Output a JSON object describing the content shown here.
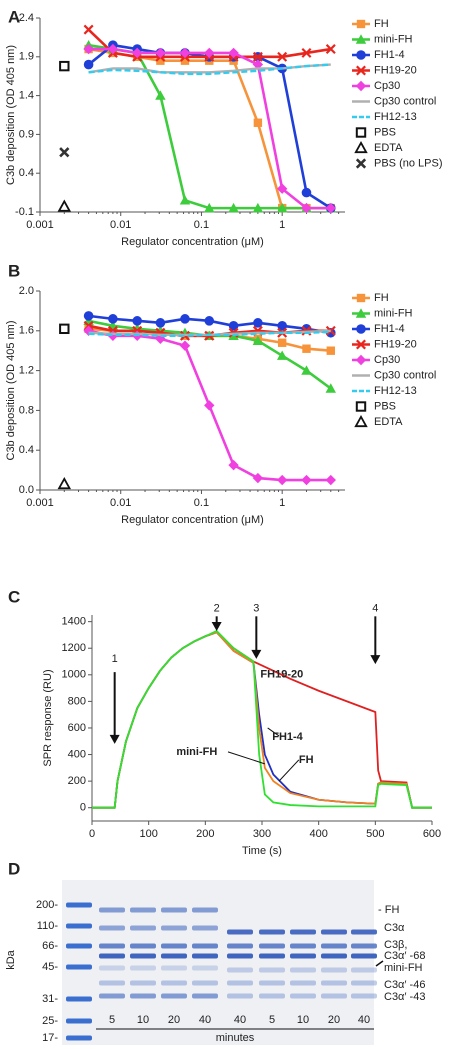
{
  "chart_data": [
    {
      "type": "line",
      "label": "A",
      "xscale": "log",
      "y_label": "C3b deposition (OD 405 nm)",
      "x_label": "Regulator concentration (μM)",
      "xlim": [
        0.001,
        6
      ],
      "xticks": [
        0.001,
        0.01,
        0.1,
        1
      ],
      "ylim": [
        -0.1,
        2.4
      ],
      "yticks": [
        -0.1,
        0.4,
        0.9,
        1.4,
        1.9,
        2.4
      ],
      "legend": "right",
      "x": [
        0.004,
        0.008,
        0.016,
        0.031,
        0.0625,
        0.125,
        0.25,
        0.5,
        1,
        2,
        4
      ],
      "series": [
        {
          "name": "FH",
          "color": "#f7933a",
          "marker": "square",
          "values": [
            2.0,
            1.95,
            1.9,
            1.85,
            1.85,
            1.85,
            1.85,
            1.05,
            -0.05,
            -0.05,
            -0.05
          ]
        },
        {
          "name": "mini-FH",
          "color": "#3ccc3c",
          "marker": "triangle",
          "values": [
            2.05,
            2.0,
            1.95,
            1.4,
            0.05,
            -0.05,
            -0.05,
            -0.05,
            -0.05,
            -0.05,
            -0.05
          ]
        },
        {
          "name": "FH1-4",
          "color": "#1f3fd8",
          "marker": "circle",
          "values": [
            1.8,
            2.05,
            2.0,
            1.95,
            1.95,
            1.9,
            1.9,
            1.9,
            1.75,
            0.15,
            -0.05
          ]
        },
        {
          "name": "FH19-20",
          "color": "#e8261e",
          "marker": "x",
          "values": [
            2.25,
            1.95,
            1.9,
            1.9,
            1.9,
            1.9,
            1.9,
            1.9,
            1.9,
            1.95,
            2.0
          ]
        },
        {
          "name": "Cp30",
          "color": "#f040e0",
          "marker": "diamond",
          "values": [
            2.0,
            2.0,
            1.95,
            1.95,
            1.95,
            1.95,
            1.95,
            1.8,
            0.2,
            -0.05,
            -0.05
          ]
        },
        {
          "name": "Cp30 control",
          "color": "#b0b0b0",
          "marker": "none",
          "style": "solid",
          "values": [
            1.7,
            1.75,
            1.75,
            1.7,
            1.7,
            1.7,
            1.72,
            1.75,
            1.75,
            1.78,
            1.8
          ]
        },
        {
          "name": "FH12-13",
          "color": "#33ccee",
          "marker": "none",
          "style": "dashed",
          "values": [
            1.7,
            1.73,
            1.72,
            1.7,
            1.68,
            1.68,
            1.7,
            1.72,
            1.75,
            1.78,
            1.8
          ]
        }
      ],
      "points": [
        {
          "name": "PBS",
          "marker": "open-square",
          "x": 0.002,
          "value": 1.78
        },
        {
          "name": "EDTA",
          "marker": "open-triangle",
          "x": 0.002,
          "value": -0.03
        },
        {
          "name": "PBS (no LPS)",
          "marker": "cross",
          "x": 0.002,
          "value": 0.67
        }
      ]
    },
    {
      "type": "line",
      "label": "B",
      "xscale": "log",
      "y_label": "C3b deposition (OD 405 nm)",
      "x_label": "Regulator concentration (μM)",
      "xlim": [
        0.001,
        6
      ],
      "xticks": [
        0.001,
        0.01,
        0.1,
        1
      ],
      "ylim": [
        0,
        2.0
      ],
      "yticks": [
        {
          "value": 0,
          "label": "0.0"
        },
        0.4,
        0.8,
        1.2,
        1.6,
        {
          "value": 2,
          "label": "2.0"
        }
      ],
      "legend": "right",
      "x": [
        0.004,
        0.008,
        0.016,
        0.031,
        0.0625,
        0.125,
        0.25,
        0.5,
        1,
        2,
        4
      ],
      "series": [
        {
          "name": "FH",
          "color": "#f7933a",
          "marker": "square",
          "values": [
            1.62,
            1.6,
            1.6,
            1.58,
            1.55,
            1.55,
            1.55,
            1.52,
            1.48,
            1.42,
            1.4
          ]
        },
        {
          "name": "mini-FH",
          "color": "#3ccc3c",
          "marker": "triangle",
          "values": [
            1.7,
            1.65,
            1.62,
            1.6,
            1.58,
            1.55,
            1.55,
            1.5,
            1.35,
            1.2,
            1.02
          ]
        },
        {
          "name": "FH1-4",
          "color": "#1f3fd8",
          "marker": "circle",
          "values": [
            1.75,
            1.72,
            1.7,
            1.68,
            1.72,
            1.7,
            1.65,
            1.68,
            1.65,
            1.62,
            1.58
          ]
        },
        {
          "name": "FH19-20",
          "color": "#e8261e",
          "marker": "x",
          "values": [
            1.65,
            1.6,
            1.6,
            1.58,
            1.55,
            1.55,
            1.58,
            1.6,
            1.58,
            1.6,
            1.6
          ]
        },
        {
          "name": "Cp30",
          "color": "#f040e0",
          "marker": "diamond",
          "values": [
            1.6,
            1.55,
            1.55,
            1.52,
            1.45,
            0.85,
            0.25,
            0.12,
            0.1,
            0.1,
            0.1
          ]
        },
        {
          "name": "Cp30 control",
          "color": "#b0b0b0",
          "marker": "none",
          "style": "solid",
          "values": [
            1.58,
            1.57,
            1.57,
            1.56,
            1.56,
            1.56,
            1.57,
            1.58,
            1.58,
            1.59,
            1.6
          ]
        },
        {
          "name": "FH12-13",
          "color": "#33ccee",
          "marker": "none",
          "style": "dashed",
          "values": [
            1.57,
            1.56,
            1.56,
            1.55,
            1.55,
            1.56,
            1.56,
            1.57,
            1.58,
            1.58,
            1.59
          ]
        }
      ],
      "points": [
        {
          "name": "PBS",
          "marker": "open-square",
          "x": 0.002,
          "value": 1.62
        },
        {
          "name": "EDTA",
          "marker": "open-triangle",
          "x": 0.002,
          "value": 0.06
        }
      ]
    },
    {
      "type": "line",
      "label": "C",
      "xscale": "linear",
      "y_label": "SPR response (RU)",
      "x_label": "Time (s)",
      "xlim": [
        0,
        600
      ],
      "xticks": [
        0,
        100,
        200,
        300,
        400,
        500,
        600
      ],
      "ylim": [
        -100,
        1450
      ],
      "yticks": [
        0,
        200,
        400,
        600,
        800,
        1000,
        1200,
        1400
      ],
      "legend": "inline",
      "annotations": [
        "1",
        "2",
        "3",
        "4"
      ],
      "x": [
        0,
        40,
        45,
        60,
        80,
        100,
        120,
        140,
        160,
        180,
        200,
        220,
        250,
        285,
        295,
        305,
        320,
        350,
        400,
        450,
        500,
        505,
        510,
        530,
        555,
        565,
        600
      ],
      "series": [
        {
          "name": "FH19-20",
          "color": "#e02020",
          "marker": "none",
          "style": "solid",
          "values": [
            0,
            0,
            200,
            500,
            750,
            900,
            1030,
            1130,
            1200,
            1250,
            1290,
            1320,
            1200,
            1100,
            1080,
            1060,
            1030,
            970,
            880,
            800,
            720,
            280,
            200,
            195,
            190,
            0,
            0
          ]
        },
        {
          "name": "FH1-4",
          "color": "#2030c0",
          "marker": "none",
          "style": "solid",
          "values": [
            0,
            0,
            200,
            500,
            750,
            900,
            1030,
            1130,
            1200,
            1250,
            1290,
            1320,
            1180,
            1090,
            700,
            400,
            250,
            120,
            60,
            40,
            30,
            180,
            190,
            185,
            180,
            0,
            0
          ]
        },
        {
          "name": "FH",
          "color": "#f08020",
          "marker": "none",
          "style": "solid",
          "values": [
            0,
            0,
            200,
            500,
            750,
            900,
            1030,
            1130,
            1200,
            1250,
            1290,
            1320,
            1180,
            1090,
            600,
            300,
            200,
            110,
            60,
            40,
            30,
            180,
            190,
            185,
            180,
            0,
            0
          ]
        },
        {
          "name": "mini-FH",
          "color": "#30e030",
          "marker": "none",
          "style": "solid",
          "values": [
            0,
            0,
            200,
            500,
            750,
            900,
            1030,
            1130,
            1200,
            1250,
            1290,
            1330,
            1200,
            1100,
            400,
            100,
            40,
            20,
            10,
            10,
            10,
            170,
            180,
            175,
            170,
            0,
            0
          ]
        }
      ]
    }
  ],
  "gel": {
    "label": "D",
    "y_label": "kDa",
    "markers": [
      "200-",
      "110-",
      "66-",
      "45-",
      "31-",
      "25-",
      "17-"
    ],
    "bands": [
      "- FH",
      "C3α",
      "C3β,",
      "C3α′ -68",
      "mini-FH",
      "C3α′ -46",
      "C3α′ -43"
    ],
    "lanes": [
      "5",
      "10",
      "20",
      "40",
      "40",
      "5",
      "10",
      "20",
      "40"
    ],
    "x_label": "minutes"
  }
}
